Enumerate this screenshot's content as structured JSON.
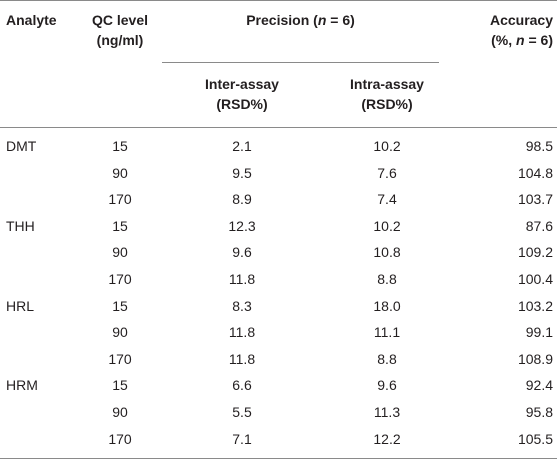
{
  "table": {
    "headers": {
      "analyte": "Analyte",
      "qc_level_line1": "QC level",
      "qc_level_line2": "(ng/ml)",
      "precision_prefix": "Precision (",
      "precision_n": "n",
      "precision_suffix": " = 6)",
      "accuracy_line1": "Accuracy",
      "accuracy_line2_prefix": "(%, ",
      "accuracy_line2_n": "n",
      "accuracy_line2_suffix": " = 6)",
      "inter_line1": "Inter-assay",
      "inter_line2": "(RSD%)",
      "intra_line1": "Intra-assay",
      "intra_line2": "(RSD%)"
    },
    "rows": [
      {
        "analyte": "DMT",
        "qc": "15",
        "inter": "2.1",
        "intra": "10.2",
        "accuracy": "98.5"
      },
      {
        "analyte": "",
        "qc": "90",
        "inter": "9.5",
        "intra": "7.6",
        "accuracy": "104.8"
      },
      {
        "analyte": "",
        "qc": "170",
        "inter": "8.9",
        "intra": "7.4",
        "accuracy": "103.7"
      },
      {
        "analyte": "THH",
        "qc": "15",
        "inter": "12.3",
        "intra": "10.2",
        "accuracy": "87.6"
      },
      {
        "analyte": "",
        "qc": "90",
        "inter": "9.6",
        "intra": "10.8",
        "accuracy": "109.2"
      },
      {
        "analyte": "",
        "qc": "170",
        "inter": "11.8",
        "intra": "8.8",
        "accuracy": "100.4"
      },
      {
        "analyte": "HRL",
        "qc": "15",
        "inter": "8.3",
        "intra": "18.0",
        "accuracy": "103.2"
      },
      {
        "analyte": "",
        "qc": "90",
        "inter": "11.8",
        "intra": "11.1",
        "accuracy": "99.1"
      },
      {
        "analyte": "",
        "qc": "170",
        "inter": "11.8",
        "intra": "8.8",
        "accuracy": "108.9"
      },
      {
        "analyte": "HRM",
        "qc": "15",
        "inter": "6.6",
        "intra": "9.6",
        "accuracy": "92.4"
      },
      {
        "analyte": "",
        "qc": "90",
        "inter": "5.5",
        "intra": "11.3",
        "accuracy": "95.8"
      },
      {
        "analyte": "",
        "qc": "170",
        "inter": "7.1",
        "intra": "12.2",
        "accuracy": "105.5"
      }
    ]
  }
}
